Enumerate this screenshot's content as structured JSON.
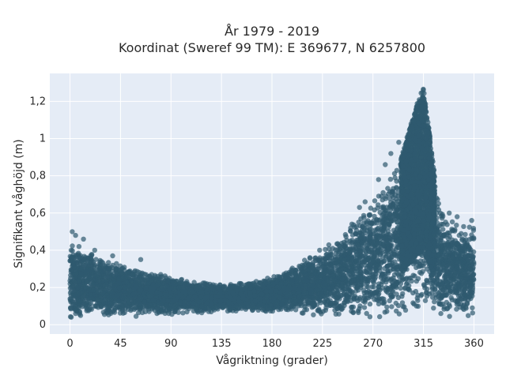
{
  "chart_data": {
    "type": "scatter",
    "title_lines": [
      "År 1979 - 2019",
      "Koordinat (Sweref 99 TM): E 369677, N 6257800"
    ],
    "xlabel": "Vågriktning (grader)",
    "ylabel": "Signifikant våghöjd (m)",
    "xlim": [
      -18,
      378
    ],
    "ylim": [
      -0.05,
      1.35
    ],
    "x_ticks": [
      0,
      45,
      90,
      135,
      180,
      225,
      270,
      315,
      360
    ],
    "x_tick_labels": [
      "0",
      "45",
      "90",
      "135",
      "180",
      "225",
      "270",
      "315",
      "360"
    ],
    "y_ticks": [
      0,
      0.2,
      0.4,
      0.6,
      0.8,
      1.0,
      1.2
    ],
    "y_tick_labels": [
      "0",
      "0,2",
      "0,4",
      "0,6",
      "0,8",
      "1",
      "1,2"
    ],
    "grid": true,
    "marker_color": "#2f5a6f",
    "plot_background": "#e5ecf6",
    "envelope": {
      "direction": [
        0,
        5,
        15,
        30,
        45,
        60,
        75,
        90,
        105,
        120,
        135,
        150,
        165,
        180,
        195,
        210,
        225,
        240,
        255,
        270,
        285,
        295,
        300,
        305,
        310,
        315,
        320,
        325,
        330,
        340,
        350,
        360
      ],
      "lower_height": [
        0.02,
        0.02,
        0.03,
        0.03,
        0.04,
        0.04,
        0.05,
        0.05,
        0.06,
        0.06,
        0.07,
        0.07,
        0.07,
        0.06,
        0.06,
        0.05,
        0.05,
        0.04,
        0.04,
        0.03,
        0.03,
        0.02,
        0.02,
        0.02,
        0.02,
        0.02,
        0.02,
        0.02,
        0.02,
        0.02,
        0.03,
        0.03
      ],
      "upper_height": [
        0.47,
        0.45,
        0.4,
        0.36,
        0.33,
        0.3,
        0.28,
        0.26,
        0.24,
        0.23,
        0.22,
        0.23,
        0.24,
        0.26,
        0.3,
        0.36,
        0.42,
        0.48,
        0.58,
        0.68,
        0.8,
        0.9,
        1.0,
        1.1,
        1.2,
        1.28,
        1.05,
        0.8,
        0.65,
        0.57,
        0.56,
        0.52
      ]
    },
    "outliers": [
      [
        2,
        0.5
      ],
      [
        5,
        0.48
      ],
      [
        8,
        0.42
      ],
      [
        12,
        0.46
      ],
      [
        22,
        0.4
      ],
      [
        38,
        0.37
      ],
      [
        63,
        0.35
      ],
      [
        258,
        0.63
      ],
      [
        263,
        0.66
      ],
      [
        275,
        0.78
      ],
      [
        281,
        0.86
      ],
      [
        286,
        0.92
      ],
      [
        293,
        0.98
      ],
      [
        338,
        0.6
      ],
      [
        345,
        0.58
      ],
      [
        358,
        0.56
      ]
    ]
  }
}
